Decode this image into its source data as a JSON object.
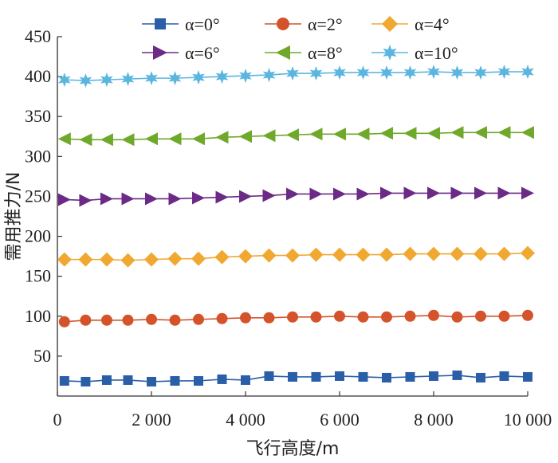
{
  "chart_data": {
    "type": "line",
    "xlabel": "飞行高度/m",
    "ylabel": "需用推力/N",
    "xlim": [
      0,
      10000
    ],
    "ylim": [
      0,
      450
    ],
    "x_tick_labels": [
      "0",
      "2 000",
      "4 000",
      "6 000",
      "8 000",
      "10 000"
    ],
    "x_ticks": [
      0,
      2000,
      4000,
      6000,
      8000,
      10000
    ],
    "y_tick_labels": [
      "50",
      "100",
      "150",
      "200",
      "250",
      "300",
      "350",
      "400",
      "450"
    ],
    "y_ticks": [
      50,
      100,
      150,
      200,
      250,
      300,
      350,
      400,
      450
    ],
    "grid": false,
    "legend_position": "top",
    "x": [
      150,
      600,
      1050,
      1500,
      2000,
      2500,
      3000,
      3500,
      4000,
      4500,
      5000,
      5500,
      6000,
      6500,
      7000,
      7500,
      8000,
      8500,
      9000,
      9500,
      10000
    ],
    "series": [
      {
        "name": "α=0°",
        "color": "#2a5fa8",
        "marker": "square",
        "values": [
          19,
          18,
          20,
          20,
          18,
          19,
          19,
          21,
          20,
          25,
          24,
          24,
          25,
          24,
          23,
          24,
          25,
          26,
          23,
          25,
          24
        ]
      },
      {
        "name": "α=2°",
        "color": "#d4532b",
        "marker": "circle",
        "values": [
          93,
          95,
          95,
          95,
          96,
          95,
          96,
          97,
          98,
          98,
          99,
          99,
          100,
          99,
          99,
          100,
          101,
          99,
          100,
          100,
          101
        ]
      },
      {
        "name": "α=4°",
        "color": "#f0a830",
        "marker": "diamond",
        "values": [
          171,
          171,
          171,
          170,
          171,
          172,
          172,
          174,
          175,
          176,
          176,
          177,
          177,
          177,
          177,
          178,
          178,
          178,
          178,
          178,
          179
        ]
      },
      {
        "name": "α=6°",
        "color": "#6b2a86",
        "marker": "triangle-right",
        "values": [
          246,
          245,
          247,
          247,
          247,
          247,
          248,
          249,
          250,
          251,
          253,
          253,
          253,
          253,
          254,
          254,
          254,
          254,
          254,
          254,
          254
        ]
      },
      {
        "name": "α=8°",
        "color": "#6fa82a",
        "marker": "triangle-left",
        "values": [
          322,
          321,
          321,
          321,
          322,
          322,
          322,
          324,
          325,
          326,
          327,
          328,
          328,
          328,
          329,
          329,
          329,
          330,
          330,
          330,
          330
        ]
      },
      {
        "name": "α=10°",
        "color": "#5bb6df",
        "marker": "star",
        "values": [
          396,
          395,
          396,
          397,
          398,
          398,
          399,
          400,
          401,
          402,
          404,
          404,
          405,
          405,
          405,
          405,
          406,
          405,
          405,
          406,
          406
        ]
      }
    ]
  }
}
